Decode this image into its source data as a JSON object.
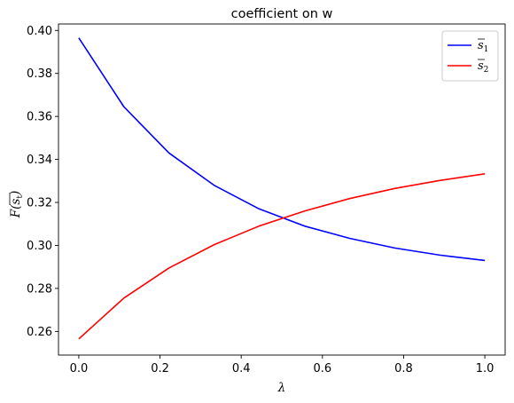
{
  "chart_data": {
    "type": "line",
    "title": "coefficient on w",
    "xlabel": "λ",
    "ylabel": "F(s̄t)",
    "xlim": [
      -0.05,
      1.05
    ],
    "ylim": [
      0.249,
      0.403
    ],
    "xticks": [
      0.0,
      0.2,
      0.4,
      0.6,
      0.8,
      1.0
    ],
    "xtick_labels": [
      "0.0",
      "0.2",
      "0.4",
      "0.6",
      "0.8",
      "1.0"
    ],
    "yticks": [
      0.26,
      0.28,
      0.3,
      0.32,
      0.34,
      0.36,
      0.38,
      0.4
    ],
    "ytick_labels": [
      "0.26",
      "0.28",
      "0.30",
      "0.32",
      "0.34",
      "0.36",
      "0.38",
      "0.40"
    ],
    "grid": false,
    "legend_position": "top-right",
    "x": [
      0.0,
      0.111,
      0.222,
      0.333,
      0.444,
      0.556,
      0.667,
      0.778,
      0.889,
      1.0
    ],
    "series": [
      {
        "name": "s̄1",
        "legend_base": "s",
        "legend_sub": "1",
        "color": "#0000ff",
        "values": [
          0.3965,
          0.3645,
          0.343,
          0.328,
          0.317,
          0.309,
          0.3033,
          0.2988,
          0.2955,
          0.293
        ]
      },
      {
        "name": "s̄2",
        "legend_base": "s",
        "legend_sub": "2",
        "color": "#ff0000",
        "values": [
          0.2565,
          0.2755,
          0.2895,
          0.3003,
          0.309,
          0.316,
          0.3218,
          0.3265,
          0.3302,
          0.3333
        ]
      }
    ]
  }
}
